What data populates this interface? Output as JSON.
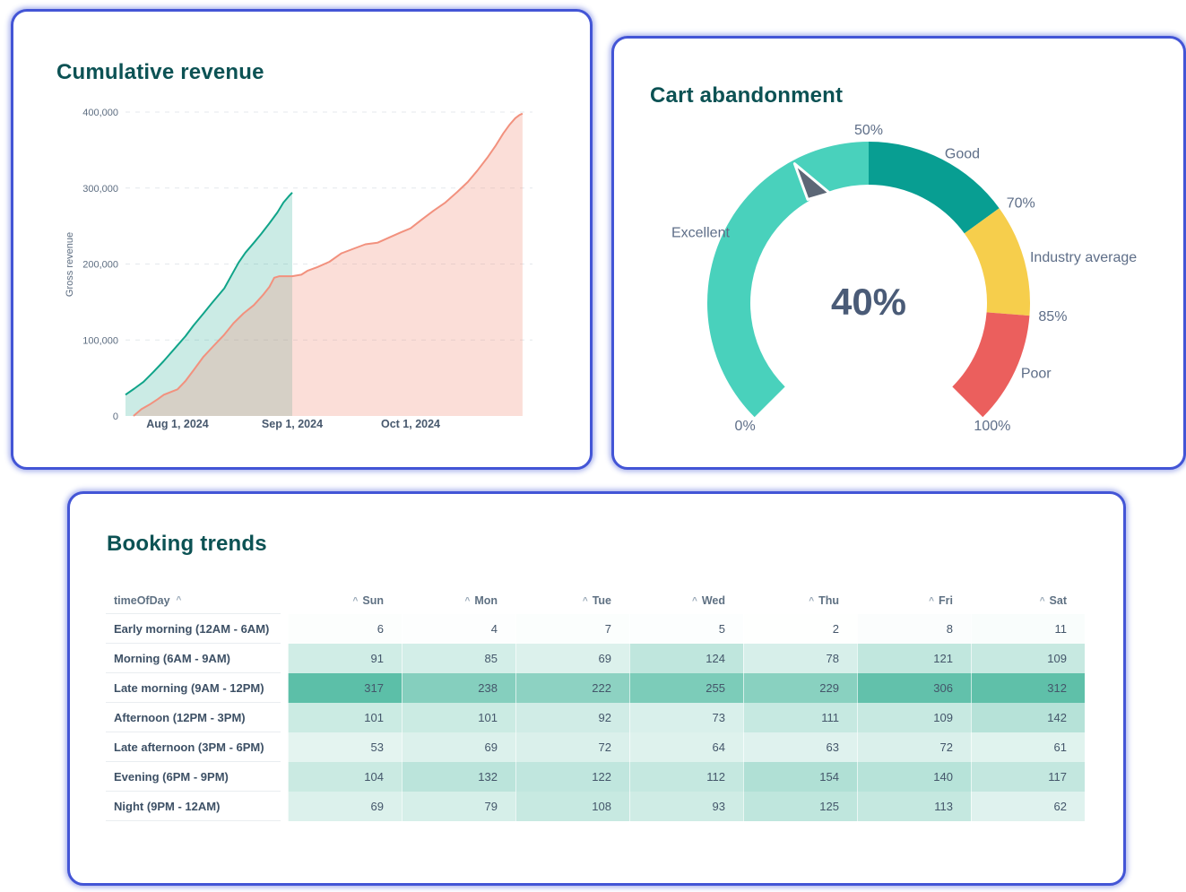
{
  "theme": {
    "card_border": "#4355D6",
    "title_color": "#0C5254"
  },
  "cards": {
    "revenue_title": "Cumulative revenue",
    "gauge_title": "Cart abandonment",
    "bookings_title": "Booking trends"
  },
  "chart_data": [
    {
      "type": "area",
      "title": "Cumulative revenue",
      "xlabel": "",
      "ylabel": "Gross revenue",
      "ylim": [
        0,
        400000
      ],
      "grid": "dashed-horizontal",
      "legend": "none",
      "yticks": [
        0,
        100000,
        200000,
        300000,
        400000
      ],
      "ytick_labels": [
        "0",
        "100,000",
        "200,000",
        "300,000",
        "400,000"
      ],
      "xticks": [
        {
          "pos": 0.13,
          "label": "Aug 1, 2024"
        },
        {
          "pos": 0.417,
          "label": "Sep 1, 2024"
        },
        {
          "pos": 0.713,
          "label": "Oct 1, 2024"
        }
      ],
      "series": [
        {
          "name": "teal",
          "color": "#10A489",
          "fill": "rgba(16,164,137,0.22)",
          "points": [
            [
              0.0,
              28000
            ],
            [
              0.022,
              36000
            ],
            [
              0.045,
              45000
            ],
            [
              0.07,
              58000
            ],
            [
              0.095,
              72000
            ],
            [
              0.13,
              93000
            ],
            [
              0.15,
              105000
            ],
            [
              0.17,
              119000
            ],
            [
              0.195,
              135000
            ],
            [
              0.215,
              148000
            ],
            [
              0.247,
              168000
            ],
            [
              0.265,
              185000
            ],
            [
              0.283,
              202000
            ],
            [
              0.3,
              215000
            ],
            [
              0.321,
              228000
            ],
            [
              0.34,
              240000
            ],
            [
              0.359,
              253000
            ],
            [
              0.38,
              268000
            ],
            [
              0.395,
              281000
            ],
            [
              0.408,
              289000
            ],
            [
              0.417,
              294000
            ]
          ]
        },
        {
          "name": "salmon",
          "color": "#F2917E",
          "fill": "rgba(242,145,126,0.30)",
          "points": [
            [
              0.02,
              0
            ],
            [
              0.04,
              9000
            ],
            [
              0.06,
              15000
            ],
            [
              0.08,
              22000
            ],
            [
              0.096,
              28000
            ],
            [
              0.13,
              35000
            ],
            [
              0.15,
              46000
            ],
            [
              0.17,
              60000
            ],
            [
              0.195,
              78000
            ],
            [
              0.22,
              92000
            ],
            [
              0.247,
              107000
            ],
            [
              0.27,
              122000
            ],
            [
              0.295,
              135000
            ],
            [
              0.321,
              146000
            ],
            [
              0.345,
              160000
            ],
            [
              0.36,
              170000
            ],
            [
              0.372,
              182000
            ],
            [
              0.385,
              184000
            ],
            [
              0.417,
              184000
            ],
            [
              0.44,
              186000
            ],
            [
              0.455,
              191000
            ],
            [
              0.48,
              196000
            ],
            [
              0.51,
              203000
            ],
            [
              0.54,
              214000
            ],
            [
              0.57,
              220000
            ],
            [
              0.6,
              226000
            ],
            [
              0.63,
              228000
            ],
            [
              0.66,
              235000
            ],
            [
              0.69,
              242000
            ],
            [
              0.713,
              247000
            ],
            [
              0.74,
              258000
            ],
            [
              0.77,
              270000
            ],
            [
              0.8,
              281000
            ],
            [
              0.83,
              295000
            ],
            [
              0.856,
              308000
            ],
            [
              0.88,
              323000
            ],
            [
              0.905,
              340000
            ],
            [
              0.925,
              355000
            ],
            [
              0.945,
              372000
            ],
            [
              0.96,
              383000
            ],
            [
              0.975,
              392000
            ],
            [
              0.985,
              396000
            ],
            [
              0.993,
              398000
            ]
          ]
        }
      ]
    },
    {
      "type": "gauge",
      "title": "Cart abandonment",
      "value": 40,
      "value_label": "40%",
      "min": 0,
      "max": 100,
      "start_angle": 225,
      "end_angle": -45,
      "needle_color": "#5C6776",
      "segments": [
        {
          "from": 0,
          "to": 50,
          "label": "Excellent",
          "color": "#49D1BC"
        },
        {
          "from": 50,
          "to": 70,
          "label": "Good",
          "color": "#089E92"
        },
        {
          "from": 70,
          "to": 85,
          "label": "Industry average",
          "color": "#F6CE4C"
        },
        {
          "from": 85,
          "to": 100,
          "label": "Poor",
          "color": "#EB5F5D"
        }
      ],
      "ticks": [
        {
          "value": 0,
          "label": "0%"
        },
        {
          "value": 50,
          "label": "50%"
        },
        {
          "value": 70,
          "label": "70%"
        },
        {
          "value": 85,
          "label": "85%"
        },
        {
          "value": 100,
          "label": "100%"
        }
      ]
    },
    {
      "type": "heatmap",
      "title": "Booking trends",
      "row_header": "timeOfDay",
      "columns": [
        "Sun",
        "Mon",
        "Tue",
        "Wed",
        "Thu",
        "Fri",
        "Sat"
      ],
      "rows": [
        {
          "label": "Early morning (12AM - 6AM)",
          "values": [
            6,
            4,
            7,
            5,
            2,
            8,
            11
          ]
        },
        {
          "label": "Morning (6AM - 9AM)",
          "values": [
            91,
            85,
            69,
            124,
            78,
            121,
            109
          ]
        },
        {
          "label": "Late morning (9AM - 12PM)",
          "values": [
            317,
            238,
            222,
            255,
            229,
            306,
            312
          ]
        },
        {
          "label": "Afternoon (12PM - 3PM)",
          "values": [
            101,
            101,
            92,
            73,
            111,
            109,
            142
          ]
        },
        {
          "label": "Late afternoon (3PM - 6PM)",
          "values": [
            53,
            69,
            72,
            64,
            63,
            72,
            61
          ]
        },
        {
          "label": "Evening (6PM - 9PM)",
          "values": [
            104,
            132,
            122,
            112,
            154,
            140,
            117
          ]
        },
        {
          "label": "Night (9PM - 12AM)",
          "values": [
            69,
            79,
            108,
            93,
            125,
            113,
            62
          ]
        }
      ],
      "color_scale": {
        "min_color": "#FFFFFF",
        "max_color": "#5CBFA8",
        "vmin": 0,
        "vmax": 317
      }
    }
  ]
}
